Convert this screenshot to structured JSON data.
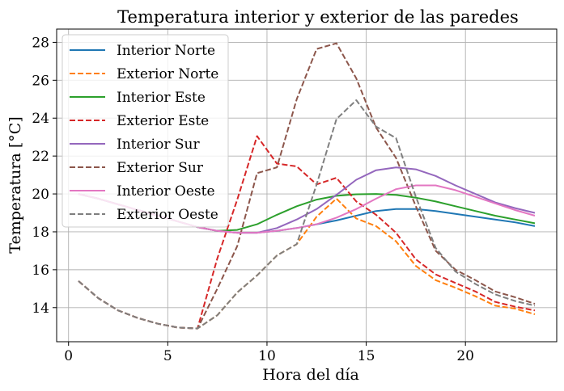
{
  "chart_data": {
    "type": "line",
    "title": "Temperatura interior y exterior de las paredes",
    "xlabel": "Hora del día",
    "ylabel": "Temperatura [°C]",
    "xlim": [
      -0.6,
      24.6
    ],
    "ylim": [
      12.2,
      28.7
    ],
    "xticks": [
      0,
      5,
      10,
      15,
      20
    ],
    "yticks": [
      14,
      16,
      18,
      20,
      22,
      24,
      26,
      28
    ],
    "grid": true,
    "legend_position": "top-left",
    "x": [
      0.5,
      1.5,
      2.5,
      3.5,
      4.5,
      5.5,
      6.5,
      7.5,
      8.5,
      9.5,
      10.5,
      11.5,
      12.5,
      13.5,
      14.5,
      15.5,
      16.5,
      17.5,
      18.5,
      19.5,
      20.5,
      21.5,
      22.5,
      23.5
    ],
    "series": [
      {
        "name": "Interior Norte",
        "color": "#1f77b4",
        "dash": "solid",
        "values": [
          20.0,
          19.75,
          19.45,
          19.15,
          18.85,
          18.55,
          18.25,
          18.05,
          17.95,
          17.95,
          18.05,
          18.2,
          18.4,
          18.6,
          18.85,
          19.1,
          19.2,
          19.2,
          19.1,
          18.95,
          18.8,
          18.65,
          18.5,
          18.3
        ]
      },
      {
        "name": "Exterior Norte",
        "color": "#ff7f0e",
        "dash": "dashed",
        "values": [
          15.4,
          14.5,
          13.85,
          13.45,
          13.15,
          12.95,
          12.9,
          13.6,
          14.8,
          15.7,
          16.75,
          17.35,
          18.8,
          19.75,
          18.7,
          18.3,
          17.5,
          16.2,
          15.45,
          15.05,
          14.6,
          14.1,
          13.95,
          13.65
        ]
      },
      {
        "name": "Interior Este",
        "color": "#2ca02c",
        "dash": "solid",
        "values": [
          20.0,
          19.75,
          19.45,
          19.15,
          18.85,
          18.55,
          18.25,
          18.05,
          18.1,
          18.4,
          18.9,
          19.35,
          19.7,
          19.9,
          19.98,
          20.0,
          19.95,
          19.8,
          19.6,
          19.35,
          19.1,
          18.85,
          18.65,
          18.45
        ]
      },
      {
        "name": "Exterior Este",
        "color": "#d62728",
        "dash": "dashed",
        "values": [
          15.4,
          14.5,
          13.85,
          13.45,
          13.15,
          12.95,
          12.9,
          16.6,
          19.7,
          23.05,
          21.6,
          21.45,
          20.5,
          20.85,
          19.6,
          18.9,
          17.95,
          16.55,
          15.75,
          15.3,
          14.85,
          14.3,
          14.05,
          13.85
        ]
      },
      {
        "name": "Interior Sur",
        "color": "#9467bd",
        "dash": "solid",
        "values": [
          20.0,
          19.75,
          19.45,
          19.15,
          18.85,
          18.55,
          18.25,
          18.05,
          17.95,
          17.95,
          18.2,
          18.65,
          19.2,
          19.95,
          20.75,
          21.25,
          21.4,
          21.3,
          20.95,
          20.45,
          20.0,
          19.55,
          19.25,
          19.0
        ]
      },
      {
        "name": "Exterior Sur",
        "color": "#8c564b",
        "dash": "dashed",
        "values": [
          15.4,
          14.5,
          13.85,
          13.45,
          13.15,
          12.95,
          12.9,
          15.0,
          17.25,
          21.1,
          21.4,
          25.0,
          27.65,
          27.95,
          26.1,
          23.5,
          21.9,
          19.35,
          17.0,
          16.0,
          15.45,
          14.85,
          14.55,
          14.2
        ]
      },
      {
        "name": "Interior Oeste",
        "color": "#e377c2",
        "dash": "solid",
        "values": [
          20.0,
          19.75,
          19.45,
          19.15,
          18.85,
          18.55,
          18.25,
          18.05,
          17.95,
          17.95,
          18.05,
          18.2,
          18.4,
          18.75,
          19.2,
          19.75,
          20.25,
          20.45,
          20.45,
          20.2,
          19.85,
          19.5,
          19.15,
          18.85
        ]
      },
      {
        "name": "Exterior Oeste",
        "color": "#7f7f7f",
        "dash": "dashed",
        "values": [
          15.4,
          14.5,
          13.85,
          13.45,
          13.15,
          12.95,
          12.9,
          13.6,
          14.8,
          15.7,
          16.75,
          17.35,
          20.5,
          23.95,
          24.95,
          23.55,
          22.95,
          19.85,
          17.15,
          15.9,
          15.25,
          14.7,
          14.35,
          14.1
        ]
      }
    ]
  }
}
